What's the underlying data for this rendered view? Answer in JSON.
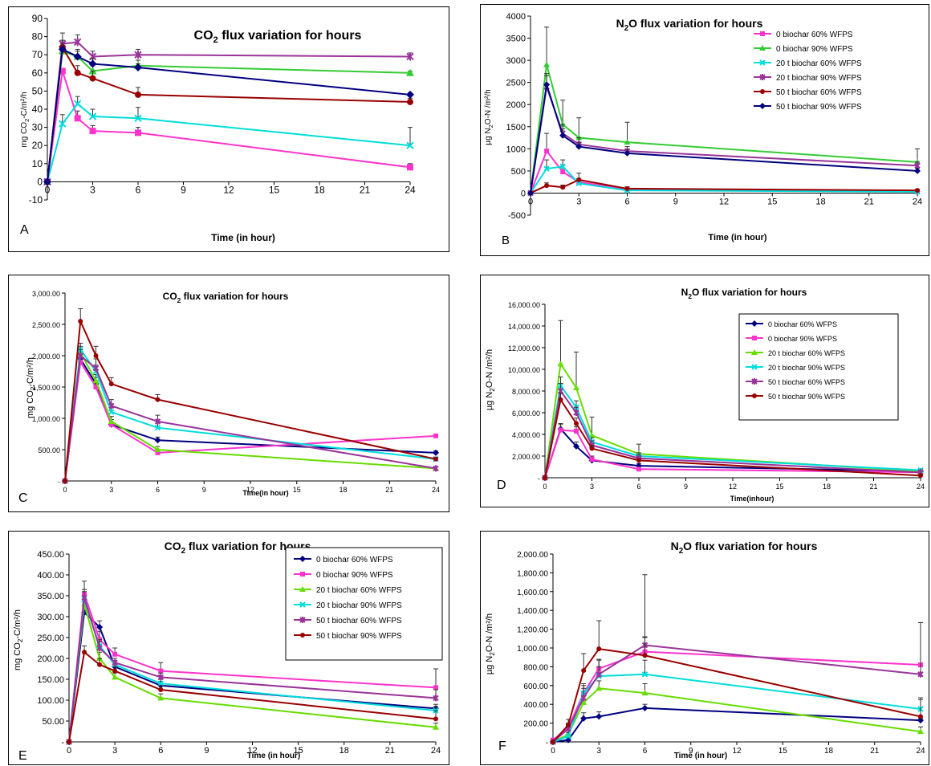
{
  "chart_data": [
    {
      "type": "line",
      "panel_letter": "A",
      "title_main": "CO",
      "title_sub": "2",
      "title_rest": " flux variation for hours",
      "xlabel": "Time (in hour)",
      "ylabel_main": "mg CO",
      "ylabel_sub": "2",
      "ylabel_rest": "-C/m²/h",
      "xlim": [
        0,
        24
      ],
      "ylim": [
        -10,
        90
      ],
      "xticks": [
        "0",
        "3",
        "6",
        "9",
        "12",
        "15",
        "18",
        "21",
        "24"
      ],
      "yticks": [
        "-10",
        "0",
        "10",
        "20",
        "30",
        "40",
        "50",
        "60",
        "70",
        "80",
        "90"
      ],
      "x": [
        0,
        1,
        2,
        3,
        6,
        24
      ],
      "legend": "none",
      "series": [
        {
          "color": "#ff33cc",
          "marker": "square",
          "values": [
            0,
            61,
            35,
            28,
            27,
            8
          ],
          "err": [
            0,
            0,
            4,
            3,
            3,
            2
          ]
        },
        {
          "color": "#33cc33",
          "marker": "triangle",
          "values": [
            0,
            72,
            69,
            61,
            64,
            60
          ],
          "err": [
            0,
            5,
            4,
            3,
            3,
            1
          ]
        },
        {
          "color": "#00dddd",
          "marker": "x",
          "values": [
            0,
            32,
            43,
            36,
            35,
            20
          ],
          "err": [
            0,
            5,
            4,
            4,
            6,
            10
          ]
        },
        {
          "color": "#993399",
          "marker": "star",
          "values": [
            0,
            76,
            77,
            69,
            70,
            69
          ],
          "err": [
            0,
            6,
            4,
            3,
            3,
            2
          ]
        },
        {
          "color": "#990000",
          "marker": "circle",
          "values": [
            0,
            74,
            60,
            57,
            48,
            44
          ],
          "err": [
            0,
            4,
            4,
            4,
            4,
            2
          ]
        },
        {
          "color": "#000080",
          "marker": "diamond",
          "values": [
            0,
            73,
            69,
            65,
            63,
            48
          ],
          "err": [
            0,
            3,
            3,
            3,
            2,
            1
          ]
        }
      ]
    },
    {
      "type": "line",
      "panel_letter": "B",
      "title_main": "N",
      "title_sub": "2",
      "title_rest": "O flux variation for hours",
      "xlabel": "Time (in hour)",
      "ylabel_main": "µg N",
      "ylabel_sub": "2",
      "ylabel_rest": "O-N /m²/h",
      "xlim": [
        0,
        24
      ],
      "ylim": [
        -500,
        4000
      ],
      "xticks": [
        "0",
        "3",
        "6",
        "9",
        "12",
        "15",
        "18",
        "21",
        "24"
      ],
      "yticks": [
        "-500",
        "0",
        "500",
        "1000",
        "1500",
        "2000",
        "2500",
        "3000",
        "3500",
        "4000"
      ],
      "x": [
        0,
        1,
        2,
        3,
        6,
        24
      ],
      "legend": "top-right",
      "series": [
        {
          "name": "0 biochar 60% WFPS",
          "color": "#ff33cc",
          "marker": "square",
          "values": [
            0,
            950,
            480,
            250,
            80,
            40
          ],
          "err": [
            0,
            400,
            150,
            80,
            40,
            20
          ]
        },
        {
          "name": "0 biochar 90% WFPS",
          "color": "#33cc33",
          "marker": "triangle",
          "values": [
            0,
            2900,
            1550,
            1250,
            1150,
            700
          ],
          "err": [
            0,
            850,
            550,
            450,
            450,
            300
          ]
        },
        {
          "name": "20 t biochar 60% WFPS",
          "color": "#00dddd",
          "marker": "x",
          "values": [
            0,
            550,
            600,
            220,
            60,
            30
          ],
          "err": [
            0,
            200,
            150,
            80,
            40,
            20
          ]
        },
        {
          "name": "20 t biochar 90% WFPS",
          "color": "#993399",
          "marker": "star",
          "values": [
            0,
            2400,
            1350,
            1100,
            950,
            620
          ],
          "err": [
            0,
            300,
            200,
            150,
            100,
            80
          ]
        },
        {
          "name": "50 t biochar 60% WFPS",
          "color": "#990000",
          "marker": "circle",
          "values": [
            0,
            170,
            130,
            300,
            100,
            60
          ],
          "err": [
            0,
            60,
            50,
            150,
            40,
            20
          ]
        },
        {
          "name": "50 t biochar 90% WFPS",
          "color": "#000080",
          "marker": "diamond",
          "values": [
            0,
            2450,
            1300,
            1050,
            900,
            500
          ],
          "err": [
            0,
            200,
            150,
            100,
            80,
            60
          ]
        }
      ]
    },
    {
      "type": "line",
      "panel_letter": "C",
      "title_main": "CO",
      "title_sub": "2",
      "title_rest": " flux variation for hours",
      "xlabel": "Time(in hour)",
      "ylabel_main": "mg CO",
      "ylabel_sub": "2",
      "ylabel_rest": "-C/m²/h",
      "xlim": [
        0,
        24
      ],
      "ylim": [
        0,
        3000
      ],
      "xticks": [
        "0",
        "3",
        "6",
        "9",
        "12",
        "15",
        "18",
        "21",
        "24"
      ],
      "yticks": [
        "-",
        "500.00",
        "1,000.00",
        "1,500.00",
        "2,000.00",
        "2,500.00",
        "3,000.00"
      ],
      "x": [
        0,
        1,
        2,
        3,
        6,
        24
      ],
      "legend": "none",
      "series": [
        {
          "color": "#000080",
          "marker": "diamond",
          "values": [
            0,
            1950,
            1550,
            900,
            650,
            450
          ],
          "err": [
            0,
            100,
            100,
            80,
            50,
            30
          ]
        },
        {
          "color": "#ff33cc",
          "marker": "square",
          "values": [
            0,
            1900,
            1500,
            900,
            450,
            720
          ],
          "err": [
            0,
            100,
            100,
            80,
            50,
            30
          ]
        },
        {
          "color": "#66dd00",
          "marker": "triangle",
          "values": [
            0,
            2050,
            1600,
            950,
            500,
            200
          ],
          "err": [
            0,
            100,
            100,
            80,
            50,
            30
          ]
        },
        {
          "color": "#00dddd",
          "marker": "x",
          "values": [
            0,
            2100,
            1750,
            1100,
            850,
            350
          ],
          "err": [
            0,
            100,
            100,
            80,
            100,
            30
          ]
        },
        {
          "color": "#993399",
          "marker": "star",
          "values": [
            0,
            2000,
            1800,
            1200,
            950,
            200
          ],
          "err": [
            0,
            100,
            150,
            100,
            100,
            30
          ]
        },
        {
          "color": "#990000",
          "marker": "circle",
          "values": [
            0,
            2550,
            2000,
            1550,
            1300,
            350
          ],
          "err": [
            0,
            200,
            150,
            100,
            80,
            30
          ]
        }
      ]
    },
    {
      "type": "line",
      "panel_letter": "D",
      "title_main": "N",
      "title_sub": "2",
      "title_rest": "O flux variation for hours",
      "xlabel": "Time(inhour)",
      "ylabel_main": "µg N",
      "ylabel_sub": "2",
      "ylabel_rest": "O-N /m²/h",
      "xlim": [
        0,
        24
      ],
      "ylim": [
        0,
        16000
      ],
      "xticks": [
        "0",
        "3",
        "6",
        "9",
        "12",
        "15",
        "18",
        "21",
        "24"
      ],
      "yticks": [
        "-",
        "2,000.00",
        "4,000.00",
        "6,000.00",
        "8,000.00",
        "10,000.00",
        "12,000.00",
        "14,000.00",
        "16,000.00"
      ],
      "x": [
        0,
        1,
        2,
        3,
        6,
        24
      ],
      "legend": "right",
      "series": [
        {
          "name": "0 biochar 60% WFPS",
          "color": "#000080",
          "marker": "diamond",
          "values": [
            0,
            4500,
            2900,
            1600,
            1100,
            600
          ],
          "err": [
            0,
            500,
            400,
            300,
            200,
            100
          ]
        },
        {
          "name": "0 biochar 90% WFPS",
          "color": "#ff33cc",
          "marker": "square",
          "values": [
            0,
            4400,
            4300,
            1700,
            800,
            500
          ],
          "err": [
            0,
            500,
            400,
            300,
            200,
            100
          ]
        },
        {
          "name": "20 t biochar 60% WFPS",
          "color": "#66dd00",
          "marker": "triangle",
          "values": [
            0,
            10500,
            8300,
            3900,
            2200,
            600
          ],
          "err": [
            0,
            4000,
            3300,
            1700,
            900,
            200
          ]
        },
        {
          "name": "20 t biochar 90% WFPS",
          "color": "#00dddd",
          "marker": "x",
          "values": [
            0,
            8500,
            6500,
            3300,
            2000,
            700
          ],
          "err": [
            0,
            800,
            600,
            400,
            300,
            100
          ]
        },
        {
          "name": "50 t biochar 60% WFPS",
          "color": "#993399",
          "marker": "star",
          "values": [
            0,
            8000,
            6000,
            3000,
            1800,
            500
          ],
          "err": [
            0,
            700,
            500,
            400,
            300,
            100
          ]
        },
        {
          "name": "50 t biochar 90% WFPS",
          "color": "#990000",
          "marker": "circle",
          "values": [
            0,
            7200,
            5000,
            2700,
            1600,
            200
          ],
          "err": [
            0,
            600,
            500,
            300,
            200,
            100
          ]
        }
      ]
    },
    {
      "type": "line",
      "panel_letter": "E",
      "title_main": "CO",
      "title_sub": "2",
      "title_rest": " flux variation for hours",
      "xlabel": "Time (in hour)",
      "ylabel_main": "mg CO",
      "ylabel_sub": "2",
      "ylabel_rest": "-C/m²/h",
      "xlim": [
        0,
        24
      ],
      "ylim": [
        0,
        450
      ],
      "xticks": [
        "0",
        "3",
        "6",
        "9",
        "12",
        "15",
        "18",
        "21",
        "24"
      ],
      "yticks": [
        "-",
        "50.00",
        "100.00",
        "150.00",
        "200.00",
        "250.00",
        "300.00",
        "350.00",
        "400.00",
        "450.00"
      ],
      "x": [
        0,
        1,
        2,
        3,
        6,
        24
      ],
      "legend": "top-right",
      "series": [
        {
          "name": "0 biochar 60% WFPS",
          "color": "#000080",
          "marker": "diamond",
          "values": [
            0,
            310,
            275,
            180,
            135,
            80
          ],
          "err": [
            0,
            20,
            15,
            10,
            10,
            10
          ]
        },
        {
          "name": "0 biochar 90% WFPS",
          "color": "#ff33cc",
          "marker": "square",
          "values": [
            0,
            355,
            245,
            210,
            170,
            130
          ],
          "err": [
            0,
            30,
            20,
            15,
            20,
            45
          ]
        },
        {
          "name": "20 t biochar 60% WFPS",
          "color": "#66dd00",
          "marker": "triangle",
          "values": [
            0,
            330,
            200,
            155,
            105,
            35
          ],
          "err": [
            0,
            20,
            15,
            10,
            10,
            10
          ]
        },
        {
          "name": "20 t biochar 90% WFPS",
          "color": "#00dddd",
          "marker": "x",
          "values": [
            0,
            340,
            230,
            185,
            140,
            75
          ],
          "err": [
            0,
            20,
            15,
            10,
            10,
            10
          ]
        },
        {
          "name": "50 t biochar 60% WFPS",
          "color": "#993399",
          "marker": "star",
          "values": [
            0,
            345,
            225,
            190,
            155,
            105
          ],
          "err": [
            0,
            20,
            15,
            10,
            10,
            20
          ]
        },
        {
          "name": "50 t biochar 90% WFPS",
          "color": "#990000",
          "marker": "circle",
          "values": [
            0,
            215,
            185,
            170,
            125,
            55
          ],
          "err": [
            0,
            15,
            15,
            10,
            10,
            20
          ]
        }
      ]
    },
    {
      "type": "line",
      "panel_letter": "F",
      "title_main": "N",
      "title_sub": "2",
      "title_rest": "O flux variation for hours",
      "xlabel": "Time (in hour)",
      "ylabel_main": "µg N",
      "ylabel_sub": "2",
      "ylabel_rest": "O-N /m²/h",
      "xlim": [
        0,
        24
      ],
      "ylim": [
        0,
        2000
      ],
      "xticks": [
        "0",
        "3",
        "6",
        "9",
        "12",
        "15",
        "18",
        "21",
        "24"
      ],
      "yticks": [
        "-",
        "200.00",
        "400.00",
        "600.00",
        "800.00",
        "1,000.00",
        "1,200.00",
        "1,400.00",
        "1,600.00",
        "1,800.00",
        "2,000.00"
      ],
      "x": [
        0,
        1,
        2,
        3,
        6,
        24
      ],
      "legend": "none",
      "series": [
        {
          "color": "#000080",
          "marker": "diamond",
          "values": [
            0,
            20,
            250,
            270,
            360,
            230
          ],
          "err": [
            0,
            20,
            60,
            50,
            40,
            20
          ]
        },
        {
          "color": "#ff33cc",
          "marker": "square",
          "values": [
            20,
            150,
            520,
            780,
            960,
            820
          ],
          "err": [
            0,
            50,
            100,
            100,
            150,
            450
          ]
        },
        {
          "color": "#66dd00",
          "marker": "triangle",
          "values": [
            0,
            80,
            420,
            570,
            520,
            110
          ],
          "err": [
            0,
            40,
            80,
            80,
            100,
            50
          ]
        },
        {
          "color": "#00dddd",
          "marker": "x",
          "values": [
            0,
            60,
            520,
            700,
            720,
            350
          ],
          "err": [
            0,
            40,
            80,
            100,
            150,
            100
          ]
        },
        {
          "color": "#993399",
          "marker": "star",
          "values": [
            0,
            140,
            470,
            720,
            1030,
            720
          ],
          "err": [
            0,
            50,
            100,
            150,
            750,
            550
          ]
        },
        {
          "color": "#990000",
          "marker": "circle",
          "values": [
            0,
            180,
            760,
            990,
            920,
            270
          ],
          "err": [
            0,
            60,
            180,
            300,
            200,
            200
          ]
        }
      ]
    }
  ]
}
